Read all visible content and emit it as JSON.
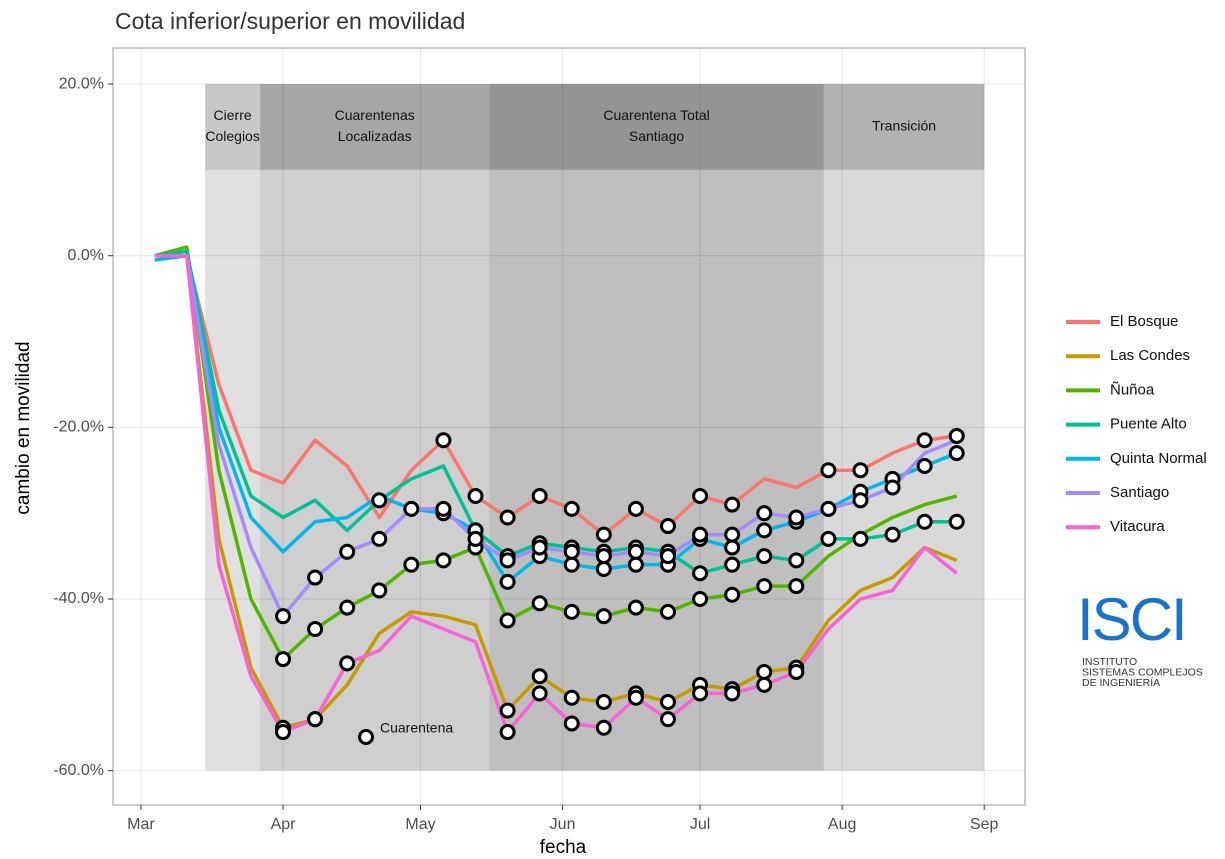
{
  "chart_data": {
    "type": "line",
    "title": "Cota inferior/superior en movilidad",
    "x_label": "fecha",
    "y_label": "cambio en movilidad",
    "annotation": "Cuarentena",
    "x": [
      3,
      10,
      17,
      24,
      31,
      38,
      45,
      52,
      59,
      66,
      73,
      80,
      87,
      94,
      101,
      108,
      115,
      122,
      129,
      136,
      143,
      150,
      157,
      164,
      171,
      178
    ],
    "xlim": [
      -6.1,
      192.9
    ],
    "xticks": [
      {
        "value": 0,
        "label": "Mar"
      },
      {
        "value": 31,
        "label": "Apr"
      },
      {
        "value": 61,
        "label": "May"
      },
      {
        "value": 92,
        "label": "Jun"
      },
      {
        "value": 122,
        "label": "Jul"
      },
      {
        "value": 153,
        "label": "Aug"
      },
      {
        "value": 184,
        "label": "Sep"
      }
    ],
    "ylim": [
      -64,
      24.2
    ],
    "yticks": [
      {
        "value": -60,
        "label": "-60.0%"
      },
      {
        "value": -40,
        "label": "-40.0%"
      },
      {
        "value": -20,
        "label": "-20.0%"
      },
      {
        "value": 0,
        "label": "0.0%"
      },
      {
        "value": 20,
        "label": "20.0%"
      }
    ],
    "grid": true,
    "phases": [
      {
        "label": [
          "Cierre",
          "Colegios"
        ],
        "start": 14,
        "end": 26
      },
      {
        "label": [
          "Cuarentenas",
          "Localizadas"
        ],
        "start": 26,
        "end": 76
      },
      {
        "label": [
          "Cuarentena Total",
          "Santiago"
        ],
        "start": 76,
        "end": 149
      },
      {
        "label": [
          "Transición"
        ],
        "start": 149,
        "end": 184
      }
    ],
    "series": [
      {
        "name": "El Bosque",
        "color": "#F8766D",
        "values": [
          0,
          0,
          -15,
          -25,
          -26.5,
          -21.5,
          -24.5,
          -30.5,
          -25,
          -21.5,
          -28,
          -30.5,
          -28,
          -29.5,
          -32.5,
          -29.5,
          -31.5,
          -28,
          -29,
          -26,
          -27,
          -25,
          -25,
          -23,
          -21.5,
          -21
        ],
        "quarantine": [
          false,
          false,
          false,
          false,
          false,
          false,
          false,
          false,
          false,
          true,
          true,
          true,
          true,
          true,
          true,
          true,
          true,
          true,
          true,
          false,
          false,
          true,
          true,
          false,
          true,
          true
        ]
      },
      {
        "name": "Las Condes",
        "color": "#C49A00",
        "values": [
          0,
          0,
          -33,
          -48,
          -55,
          -54,
          -50,
          -44,
          -41.5,
          -42,
          -43,
          -53,
          -49,
          -51.5,
          -52,
          -51,
          -52,
          -50,
          -50.5,
          -48.5,
          -48,
          -42.5,
          -39,
          -37.5,
          -34,
          -35.5
        ],
        "quarantine": [
          false,
          false,
          false,
          false,
          true,
          true,
          false,
          false,
          false,
          false,
          false,
          true,
          true,
          true,
          true,
          true,
          true,
          true,
          true,
          true,
          true,
          false,
          false,
          false,
          false,
          false
        ]
      },
      {
        "name": "Ñuñoa",
        "color": "#53B400",
        "values": [
          0,
          1,
          -25,
          -40,
          -47,
          -43.5,
          -41,
          -39,
          -36,
          -35.5,
          -34,
          -42.5,
          -40.5,
          -41.5,
          -42,
          -41,
          -41.5,
          -40,
          -39.5,
          -38.5,
          -38.5,
          -35,
          -32.5,
          -30.5,
          -29,
          -28
        ],
        "quarantine": [
          false,
          false,
          false,
          false,
          true,
          true,
          true,
          true,
          true,
          true,
          true,
          true,
          true,
          true,
          true,
          true,
          true,
          true,
          true,
          true,
          true,
          false,
          false,
          false,
          false,
          false
        ]
      },
      {
        "name": "Puente Alto",
        "color": "#00C094",
        "values": [
          0,
          0.5,
          -18,
          -28,
          -30.5,
          -28.5,
          -32,
          -28.5,
          -26,
          -24.5,
          -32,
          -35,
          -33.5,
          -34,
          -34.5,
          -34,
          -34.5,
          -37,
          -36,
          -35,
          -35.5,
          -33,
          -33,
          -32.5,
          -31,
          -31
        ],
        "quarantine": [
          false,
          false,
          false,
          false,
          false,
          false,
          false,
          true,
          false,
          false,
          true,
          true,
          true,
          true,
          true,
          true,
          true,
          true,
          true,
          true,
          true,
          true,
          true,
          true,
          true,
          true
        ]
      },
      {
        "name": "Quinta Normal",
        "color": "#00B6EB",
        "values": [
          -0.5,
          0,
          -20,
          -30.5,
          -34.5,
          -31,
          -30.5,
          -28,
          -29.5,
          -30,
          -32,
          -38,
          -35,
          -36,
          -36.5,
          -36,
          -36,
          -33,
          -34,
          -32,
          -31,
          -29.5,
          -27.5,
          -26,
          -24.5,
          -23
        ],
        "quarantine": [
          false,
          false,
          false,
          false,
          false,
          false,
          false,
          false,
          false,
          true,
          true,
          true,
          true,
          true,
          true,
          true,
          true,
          true,
          true,
          true,
          true,
          true,
          true,
          true,
          true,
          true
        ]
      },
      {
        "name": "Santiago",
        "color": "#A58AFF",
        "values": [
          0,
          0,
          -22,
          -34,
          -42,
          -37.5,
          -34.5,
          -33,
          -29.5,
          -29.5,
          -33,
          -35.5,
          -34,
          -34.5,
          -35,
          -34.5,
          -35,
          -32.5,
          -32.5,
          -30,
          -30.5,
          -29.5,
          -28.5,
          -27,
          -23,
          -21.5
        ],
        "quarantine": [
          false,
          false,
          false,
          false,
          true,
          true,
          true,
          true,
          true,
          true,
          true,
          true,
          true,
          true,
          true,
          true,
          true,
          true,
          true,
          true,
          true,
          true,
          true,
          true,
          false,
          false
        ]
      },
      {
        "name": "Vitacura",
        "color": "#FB61D7",
        "values": [
          0,
          0,
          -36,
          -49,
          -55.5,
          -54,
          -47.5,
          -46,
          -42,
          -43.5,
          -45,
          -55.5,
          -51,
          -54.5,
          -55,
          -51.5,
          -54,
          -51,
          -51,
          -50,
          -48.5,
          -43.5,
          -40,
          -39,
          -34,
          -37
        ],
        "quarantine": [
          false,
          false,
          false,
          false,
          true,
          true,
          true,
          false,
          false,
          false,
          false,
          true,
          true,
          true,
          true,
          true,
          true,
          true,
          true,
          true,
          true,
          false,
          false,
          false,
          false,
          false
        ]
      }
    ]
  },
  "logo": {
    "name": "ISCI",
    "lines": [
      "INSTITUTO",
      "SISTEMAS COMPLEJOS",
      "DE INGENIERÍA"
    ]
  }
}
